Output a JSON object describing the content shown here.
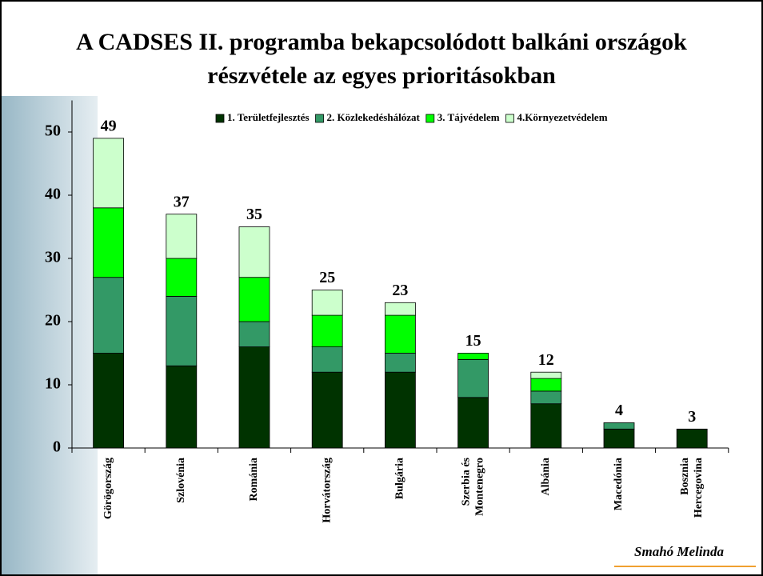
{
  "chart_data": {
    "type": "stacked_bar",
    "title": [
      "A CADSES II. programba bekapcsolódott balkáni országok",
      "részvétele az egyes prioritásokban"
    ],
    "categories": [
      "Görögország",
      "Szlovénia",
      "Románia",
      "Horvátország",
      "Bulgária",
      "Szerbia és Montenegro",
      "Albánia",
      "Macedónia",
      "Bosznia Hercegovina"
    ],
    "series": [
      {
        "name": "1. Területfejlesztés",
        "color": "#003300",
        "values": [
          15,
          13,
          16,
          12,
          12,
          8,
          7,
          3,
          3
        ]
      },
      {
        "name": "2. Közlekedéshálózat",
        "color": "#339966",
        "values": [
          12,
          11,
          4,
          4,
          3,
          6,
          2,
          1,
          0
        ]
      },
      {
        "name": "3. Tájvédelem",
        "color": "#00ff00",
        "values": [
          11,
          6,
          7,
          5,
          6,
          1,
          2,
          0,
          0
        ]
      },
      {
        "name": "4.Környezetvédelem",
        "color": "#ccffcc",
        "values": [
          11,
          7,
          8,
          4,
          2,
          0,
          1,
          0,
          0
        ]
      }
    ],
    "total_labels": [
      "49",
      "37",
      "35",
      "25",
      "23",
      "15",
      "12",
      "4",
      "3"
    ],
    "ylim": [
      0,
      55
    ],
    "yticks": [
      0,
      10,
      20,
      30,
      40,
      50
    ],
    "legend": "top-right",
    "author": "Smahó Melinda"
  }
}
